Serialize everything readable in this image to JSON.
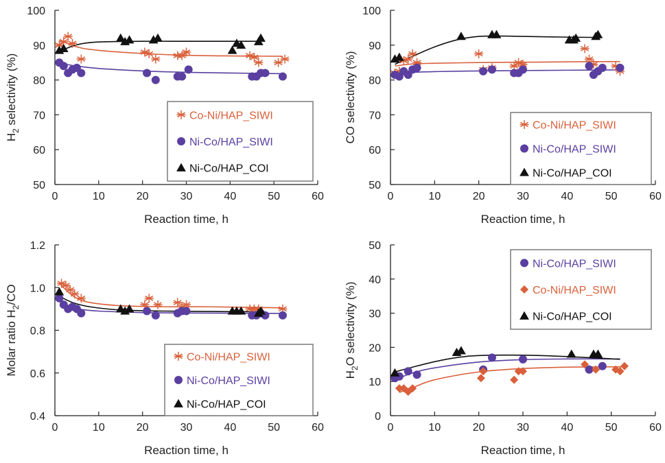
{
  "colors": {
    "coni": "#d9603b",
    "nico": "#5a3fa0",
    "coi": "#111111",
    "axis": "#222222",
    "legend_border": "#7a7a7a"
  },
  "chart_data": [
    {
      "id": "h2",
      "type": "scatter",
      "xlabel": "Reaction time, h",
      "ylabel": {
        "pre": "H",
        "sub": "2",
        "post": "  selectivity (%)"
      },
      "xlim": [
        0,
        60
      ],
      "ylim": [
        50,
        100
      ],
      "xticks": [
        0,
        10,
        20,
        30,
        40,
        50,
        60
      ],
      "yticks": [
        50,
        60,
        70,
        80,
        90,
        100
      ],
      "ytick_format": "0",
      "legend": "right-lower",
      "grid": false,
      "series": [
        {
          "name": "Co-Ni/HAP_SIWI",
          "marker": "star",
          "color": "coni",
          "x": [
            1,
            2,
            3,
            4,
            6,
            20.5,
            21.5,
            23,
            28,
            29,
            30,
            44.5,
            45.5,
            46.5,
            51,
            52.5
          ],
          "y": [
            90,
            91,
            92.5,
            90.5,
            86,
            88,
            87.5,
            86,
            87,
            87,
            88,
            87,
            86.5,
            85,
            85,
            86
          ],
          "fit_x": [
            1,
            5,
            10,
            20,
            30,
            40,
            52
          ],
          "fit_y": [
            91.5,
            89.5,
            88.5,
            87.6,
            87.1,
            86.9,
            86.8
          ]
        },
        {
          "name": "Ni-Co/HAP_SIWI",
          "marker": "circle",
          "color": "nico",
          "x": [
            1,
            2,
            3,
            4,
            5,
            6,
            21,
            23,
            28,
            29,
            30.5,
            45,
            46,
            47,
            48,
            52
          ],
          "y": [
            85,
            84,
            82,
            83,
            83.5,
            82,
            82,
            80,
            81,
            81,
            83,
            81,
            81,
            82,
            82,
            81
          ],
          "fit_x": [
            1,
            5,
            10,
            20,
            30,
            40,
            52
          ],
          "fit_y": [
            84.8,
            84,
            83.3,
            82.6,
            82.2,
            82,
            81.8
          ]
        },
        {
          "name": "Ni-Co/HAP_COI",
          "marker": "triangle",
          "color": "coi",
          "x": [
            1,
            2,
            15,
            16,
            17,
            22.5,
            23.5,
            40.5,
            41.5,
            42.5,
            46.5,
            47
          ],
          "y": [
            88.5,
            89,
            92,
            91,
            91.5,
            91.5,
            92,
            88.5,
            90.5,
            90,
            91,
            92
          ],
          "fit_x": [
            1,
            5,
            10,
            20,
            30,
            40,
            47
          ],
          "fit_y": [
            88.2,
            90.1,
            90.9,
            91.1,
            91.1,
            91.1,
            91.1
          ]
        }
      ]
    },
    {
      "id": "co",
      "type": "scatter",
      "xlabel": "Reaction time, h",
      "ylabel": {
        "pre": "CO selectivity  (%)",
        "sub": "",
        "post": ""
      },
      "xlim": [
        0,
        60
      ],
      "ylim": [
        50,
        100
      ],
      "xticks": [
        0,
        10,
        20,
        30,
        40,
        50,
        60
      ],
      "yticks": [
        50,
        60,
        70,
        80,
        90,
        100
      ],
      "ytick_format": "0",
      "legend": "right-lower",
      "grid": false,
      "series": [
        {
          "name": "Co-Ni/HAP_SIWI",
          "marker": "star",
          "color": "coni",
          "x": [
            1,
            2,
            3,
            4,
            5,
            6,
            20,
            21,
            23,
            28,
            29,
            30,
            44,
            45,
            46,
            51,
            52
          ],
          "y": [
            82,
            82.5,
            85.5,
            86,
            87.5,
            85,
            87.5,
            83,
            83.5,
            84,
            85,
            84.5,
            89,
            86,
            84.5,
            84,
            82.5
          ],
          "fit_x": [
            1,
            5,
            10,
            20,
            30,
            40,
            52
          ],
          "fit_y": [
            84,
            84.6,
            84.8,
            85,
            85.1,
            85.2,
            85.3
          ]
        },
        {
          "name": "Ni-Co/HAP_SIWI",
          "marker": "circle",
          "color": "nico",
          "x": [
            1,
            2,
            3,
            4,
            5,
            6,
            21,
            23,
            28,
            29,
            30,
            45,
            46,
            47,
            48,
            52
          ],
          "y": [
            81.5,
            81,
            82.5,
            81.5,
            83,
            83.5,
            82.5,
            83,
            82,
            82,
            83,
            84,
            81.5,
            82.5,
            83.5,
            83.5
          ],
          "fit_x": [
            1,
            5,
            10,
            20,
            30,
            40,
            52
          ],
          "fit_y": [
            81.9,
            82.2,
            82.4,
            82.6,
            82.7,
            82.8,
            82.9
          ]
        },
        {
          "name": "Ni-Co/HAP_COI",
          "marker": "triangle",
          "color": "coi",
          "x": [
            1,
            2,
            16,
            23,
            24,
            40.5,
            41.5,
            42,
            46.5,
            47
          ],
          "y": [
            86,
            86.5,
            92.5,
            93,
            93,
            91.5,
            91.5,
            92,
            92.5,
            93
          ],
          "fit_x": [
            1,
            5,
            10,
            15,
            20,
            25,
            30,
            40,
            47
          ],
          "fit_y": [
            84.5,
            86.8,
            89.5,
            91.5,
            92.5,
            92.6,
            92.5,
            92.3,
            92.2
          ]
        }
      ]
    },
    {
      "id": "ratio",
      "type": "scatter",
      "xlabel": "Reaction time, h",
      "ylabel": {
        "pre": "Molar ratio H",
        "sub": "2",
        "post": "/CO"
      },
      "xlim": [
        0,
        60
      ],
      "ylim": [
        0.4,
        1.2
      ],
      "xticks": [
        0,
        10,
        20,
        30,
        40,
        50,
        60
      ],
      "yticks": [
        0.4,
        0.6,
        0.8,
        1.0,
        1.2
      ],
      "ytick_format": "0.0",
      "legend": "right-lower",
      "grid": false,
      "series": [
        {
          "name": "Co-Ni/HAP_SIWI",
          "marker": "star",
          "color": "coni",
          "x": [
            1.5,
            2.5,
            3.5,
            4.5,
            6,
            20.5,
            21.5,
            23.5,
            28,
            29,
            30,
            44.5,
            45.5,
            46.5,
            52
          ],
          "y": [
            1.02,
            1.01,
            0.99,
            0.97,
            0.95,
            0.92,
            0.95,
            0.92,
            0.93,
            0.91,
            0.92,
            0.9,
            0.9,
            0.9,
            0.9
          ],
          "fit_x": [
            1,
            3,
            5,
            8,
            15,
            25,
            35,
            52
          ],
          "fit_y": [
            1.02,
            0.98,
            0.95,
            0.93,
            0.915,
            0.91,
            0.91,
            0.905
          ]
        },
        {
          "name": "Ni-Co/HAP_SIWI",
          "marker": "circle",
          "color": "nico",
          "x": [
            1,
            2,
            3,
            4,
            5,
            6,
            21,
            23,
            28,
            29,
            30,
            45,
            46,
            47,
            48,
            52
          ],
          "y": [
            0.95,
            0.92,
            0.9,
            0.91,
            0.9,
            0.88,
            0.89,
            0.87,
            0.88,
            0.89,
            0.89,
            0.87,
            0.87,
            0.88,
            0.87,
            0.87
          ],
          "fit_x": [
            1,
            3,
            6,
            10,
            20,
            30,
            40,
            52
          ],
          "fit_y": [
            0.95,
            0.915,
            0.898,
            0.89,
            0.883,
            0.881,
            0.88,
            0.879
          ]
        },
        {
          "name": "Ni-Co/HAP_COI",
          "marker": "triangle",
          "color": "coi",
          "x": [
            1,
            15,
            16,
            17,
            40.5,
            41.5,
            42.5,
            46.5,
            47
          ],
          "y": [
            0.98,
            0.9,
            0.89,
            0.9,
            0.89,
            0.89,
            0.89,
            0.88,
            0.89
          ],
          "fit_x": [
            1,
            4,
            8,
            15,
            25,
            35,
            47
          ],
          "fit_y": [
            0.96,
            0.93,
            0.91,
            0.895,
            0.89,
            0.888,
            0.887
          ]
        }
      ]
    },
    {
      "id": "h2o",
      "type": "scatter",
      "xlabel": "Reaction time, h",
      "ylabel": {
        "pre": "H",
        "sub": "2",
        "post": "O selectivity (%)"
      },
      "xlim": [
        0,
        60
      ],
      "ylim": [
        0,
        50
      ],
      "xticks": [
        0,
        10,
        20,
        30,
        40,
        50,
        60
      ],
      "yticks": [
        0,
        10,
        20,
        30,
        40,
        50
      ],
      "ytick_format": "0",
      "legend": "right-upper",
      "grid": false,
      "series": [
        {
          "name": "Ni-Co/HAP_SIWI",
          "marker": "circle",
          "color": "nico",
          "x": [
            1,
            2,
            4,
            6,
            21,
            23,
            30,
            45,
            48
          ],
          "y": [
            11,
            11.5,
            13,
            12,
            13.5,
            17,
            16.5,
            13.5,
            14.5
          ],
          "fit_x": [
            1,
            5,
            10,
            20,
            30,
            40,
            52
          ],
          "fit_y": [
            10.5,
            12.5,
            14,
            15.7,
            16.4,
            16.6,
            16.6
          ]
        },
        {
          "name": "Co-Ni/HAP_SIWI",
          "marker": "diamond",
          "color": "coni",
          "x": [
            2,
            3,
            4,
            5,
            20.5,
            21,
            28,
            29,
            30,
            44,
            46.5,
            51,
            52,
            53
          ],
          "y": [
            8,
            8,
            7,
            8,
            11,
            13,
            10.5,
            13,
            13,
            15,
            13.5,
            13.5,
            13,
            14.5
          ],
          "fit_x": [
            2,
            5,
            10,
            20,
            30,
            40,
            53
          ],
          "fit_y": [
            6.8,
            8.2,
            10.5,
            12.8,
            13.8,
            14.2,
            14.3
          ]
        },
        {
          "name": "Ni-Co/HAP_COI",
          "marker": "triangle",
          "color": "coi",
          "x": [
            1,
            15,
            16,
            41,
            46,
            47
          ],
          "y": [
            12.5,
            18.5,
            19,
            18,
            18,
            18
          ],
          "fit_x": [
            1,
            5,
            10,
            15,
            20,
            30,
            40,
            52
          ],
          "fit_y": [
            12.8,
            14.2,
            15.8,
            17,
            17.6,
            17.7,
            17.3,
            16.5
          ]
        }
      ]
    }
  ]
}
